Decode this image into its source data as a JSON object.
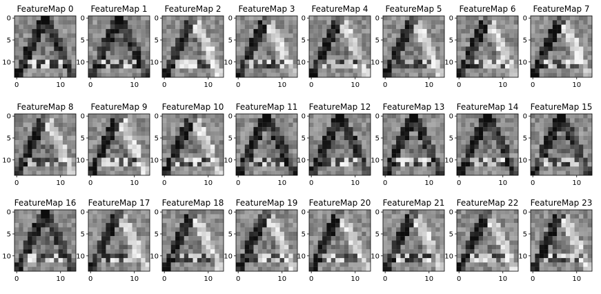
{
  "chart_data": {
    "type": "heatmap",
    "layout": {
      "rows": 3,
      "cols": 8
    },
    "colormap": "gray",
    "matrix_size": [
      14,
      14
    ],
    "xticks": [
      "0",
      "10"
    ],
    "yticks": [
      "0",
      "5",
      "10"
    ],
    "xtick_values": [
      0,
      10
    ],
    "ytick_values": [
      0,
      5,
      10
    ],
    "grid": false,
    "panels": [
      {
        "title": "FeatureMap 0"
      },
      {
        "title": "FeatureMap 1"
      },
      {
        "title": "FeatureMap 2"
      },
      {
        "title": "FeatureMap 3"
      },
      {
        "title": "FeatureMap 4"
      },
      {
        "title": "FeatureMap 5"
      },
      {
        "title": "FeatureMap 6"
      },
      {
        "title": "FeatureMap 7"
      },
      {
        "title": "FeatureMap 8"
      },
      {
        "title": "FeatureMap 9"
      },
      {
        "title": "FeatureMap 10"
      },
      {
        "title": "FeatureMap 11"
      },
      {
        "title": "FeatureMap 12"
      },
      {
        "title": "FeatureMap 13"
      },
      {
        "title": "FeatureMap 14"
      },
      {
        "title": "FeatureMap 15"
      },
      {
        "title": "FeatureMap 16"
      },
      {
        "title": "FeatureMap 17"
      },
      {
        "title": "FeatureMap 18"
      },
      {
        "title": "FeatureMap 19"
      },
      {
        "title": "FeatureMap 20"
      },
      {
        "title": "FeatureMap 21"
      },
      {
        "title": "FeatureMap 22"
      },
      {
        "title": "FeatureMap 23"
      }
    ]
  }
}
